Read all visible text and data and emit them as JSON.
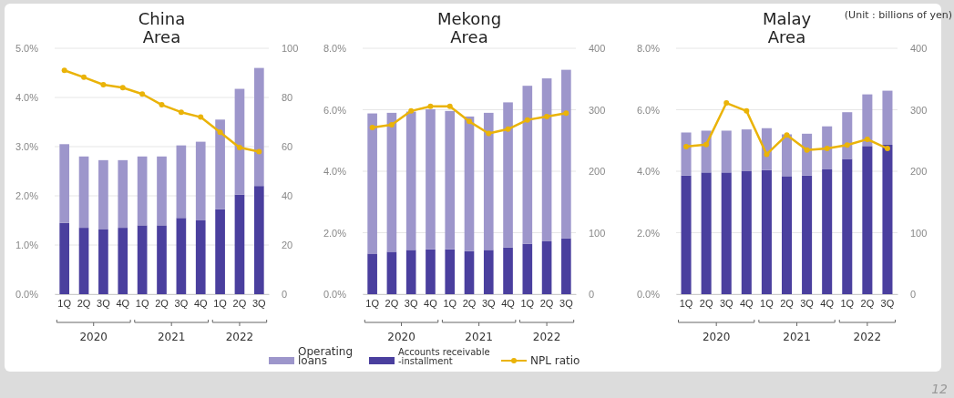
{
  "chart_data": [
    {
      "type": "bar",
      "title": "China\nArea",
      "stacked": true,
      "grid": "y",
      "legend": false,
      "marker": "circle",
      "line_style": "solid",
      "categories": [
        "1Q",
        "2Q",
        "3Q",
        "4Q",
        "1Q",
        "2Q",
        "3Q",
        "4Q",
        "1Q",
        "2Q",
        "3Q"
      ],
      "series": [
        {
          "color": "#4a3f9e",
          "axis": "y2",
          "values": [
            29,
            27,
            26.5,
            27,
            28,
            28,
            31,
            30,
            34.5,
            40.5,
            44
          ]
        },
        {
          "color": "#9d96cb",
          "axis": "y2",
          "values": [
            32,
            29,
            28,
            27.5,
            28,
            28,
            29.5,
            32,
            36.5,
            43,
            48
          ]
        },
        {
          "type": "line",
          "color": "#eab308",
          "values": [
            4.55,
            4.41,
            4.26,
            4.2,
            4.07,
            3.85,
            3.7,
            3.6,
            3.29,
            2.98,
            2.9
          ]
        }
      ],
      "ylim": [
        0,
        5
      ],
      "yticks": [
        {
          "value": 0,
          "label": "0.0%"
        },
        {
          "value": 1,
          "label": "1.0%"
        },
        {
          "value": 2,
          "label": "2.0%"
        },
        {
          "value": 3,
          "label": "3.0%"
        },
        {
          "value": 4,
          "label": "4.0%"
        },
        {
          "value": 5,
          "label": "5.0%"
        }
      ],
      "y2lim": [
        0,
        100
      ],
      "y2ticks": [
        0,
        20,
        40,
        60,
        80,
        100
      ],
      "annotations": [
        "2020",
        "2021",
        "2022"
      ]
    },
    {
      "type": "bar",
      "title": "Mekong\nArea",
      "stacked": true,
      "grid": "y",
      "legend": "bottom",
      "marker": "circle",
      "line_style": "solid",
      "categories": [
        "1Q",
        "2Q",
        "3Q",
        "4Q",
        "1Q",
        "2Q",
        "3Q",
        "4Q",
        "1Q",
        "2Q",
        "3Q"
      ],
      "series": [
        {
          "name": "Accounts receivable -installment",
          "color": "#4a3f9e",
          "axis": "y2",
          "values": [
            66,
            69,
            72,
            73,
            73,
            70,
            72,
            76,
            82,
            86,
            91
          ]
        },
        {
          "name": "Operating loans",
          "color": "#9d96cb",
          "axis": "y2",
          "values": [
            228,
            226,
            225,
            228,
            225,
            219,
            223,
            236,
            257,
            265,
            274
          ]
        },
        {
          "name": "NPL ratio",
          "type": "line",
          "color": "#eab308",
          "values": [
            5.42,
            5.51,
            5.96,
            6.11,
            6.11,
            5.62,
            5.23,
            5.37,
            5.67,
            5.78,
            5.89
          ]
        }
      ],
      "ylim": [
        0,
        8
      ],
      "yticks": [
        {
          "value": 0,
          "label": "0.0%"
        },
        {
          "value": 2,
          "label": "2.0%"
        },
        {
          "value": 4,
          "label": "4.0%"
        },
        {
          "value": 6,
          "label": "6.0%"
        },
        {
          "value": 8,
          "label": "8.0%"
        }
      ],
      "y2lim": [
        0,
        400
      ],
      "y2ticks": [
        0,
        100,
        200,
        300,
        400
      ],
      "annotations": [
        "2020",
        "2021",
        "2022"
      ]
    },
    {
      "type": "bar",
      "title": "Malay\nArea",
      "stacked": true,
      "grid": "y",
      "legend": false,
      "marker": "circle",
      "line_style": "solid",
      "categories": [
        "1Q",
        "2Q",
        "3Q",
        "4Q",
        "1Q",
        "2Q",
        "3Q",
        "4Q",
        "1Q",
        "2Q",
        "3Q"
      ],
      "series": [
        {
          "color": "#4a3f9e",
          "axis": "y2",
          "values": [
            193,
            198,
            198,
            200,
            202,
            192,
            193,
            203,
            220,
            241,
            243
          ]
        },
        {
          "color": "#9d96cb",
          "axis": "y2",
          "values": [
            70,
            68,
            68,
            68,
            68,
            68,
            68,
            70,
            76,
            84,
            88
          ]
        },
        {
          "type": "line",
          "color": "#eab308",
          "values": [
            4.8,
            4.87,
            6.22,
            5.96,
            4.55,
            5.18,
            4.69,
            4.74,
            4.85,
            5.04,
            4.74
          ]
        }
      ],
      "ylim": [
        0,
        8
      ],
      "yticks": [
        {
          "value": 0,
          "label": "0.0%"
        },
        {
          "value": 2,
          "label": "2.0%"
        },
        {
          "value": 4,
          "label": "4.0%"
        },
        {
          "value": 6,
          "label": "6.0%"
        },
        {
          "value": 8,
          "label": "8.0%"
        }
      ],
      "y2lim": [
        0,
        400
      ],
      "y2ticks": [
        0,
        100,
        200,
        300,
        400
      ],
      "annotations": [
        "2020",
        "2021",
        "2022",
        "(Unit : billions of yen)",
        "12"
      ]
    }
  ]
}
